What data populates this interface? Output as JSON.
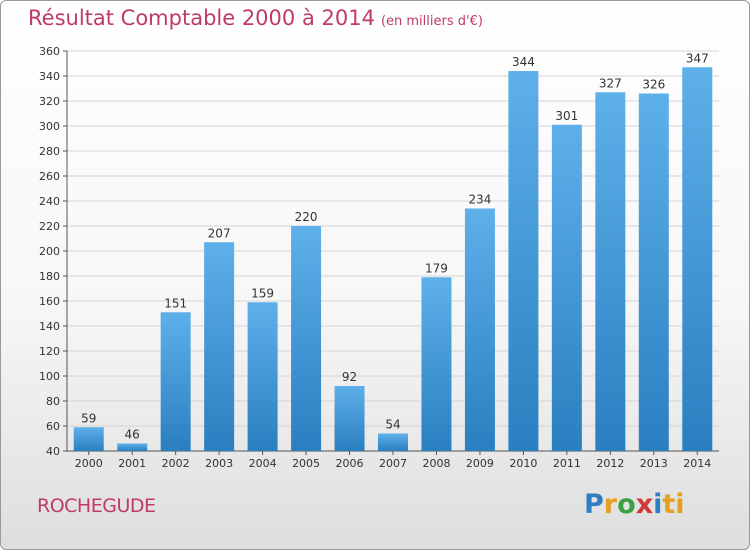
{
  "header": {
    "title": "Résultat Comptable 2000 à 2014",
    "subtitle": "(en milliers d'€)"
  },
  "commune": "ROCHEGUDE",
  "logo": {
    "letters": [
      "P",
      "r",
      "o",
      "x",
      "i",
      "ti"
    ],
    "name": "Proxiti"
  },
  "colors": {
    "title": "#c0396b",
    "bar_light": "#5eb0ea",
    "bar_dark": "#2a7fc0",
    "grid": "#d4d4d4"
  },
  "chart_data": {
    "type": "bar",
    "title": "Résultat Comptable 2000 à 2014",
    "subtitle": "(en milliers d'€)",
    "xlabel": "",
    "ylabel": "",
    "categories": [
      "2000",
      "2001",
      "2002",
      "2003",
      "2004",
      "2005",
      "2006",
      "2007",
      "2008",
      "2009",
      "2010",
      "2011",
      "2012",
      "2013",
      "2014"
    ],
    "values": [
      59,
      46,
      151,
      207,
      159,
      220,
      92,
      54,
      179,
      234,
      344,
      301,
      327,
      326,
      347
    ],
    "ylim": [
      40,
      360
    ],
    "yticks": [
      40,
      60,
      80,
      100,
      120,
      140,
      160,
      180,
      200,
      220,
      240,
      260,
      280,
      300,
      320,
      340,
      360
    ],
    "grid": true,
    "data_labels": true
  }
}
